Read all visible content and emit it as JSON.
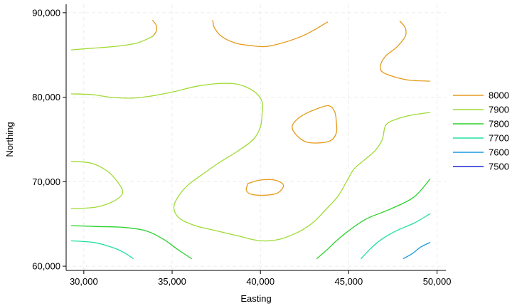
{
  "chart_data": {
    "type": "contour",
    "xlabel": "Easting",
    "ylabel": "Northing",
    "xlim": [
      29000,
      50500
    ],
    "ylim": [
      59500,
      91000
    ],
    "x_ticks": [
      30000,
      35000,
      40000,
      45000,
      50000
    ],
    "x_tick_labels": [
      "30,000",
      "35,000",
      "40,000",
      "45,000",
      "50,000"
    ],
    "y_ticks": [
      60000,
      70000,
      80000,
      90000
    ],
    "y_tick_labels": [
      "60,000",
      "70,000",
      "80,000",
      "90,000"
    ],
    "grid": true,
    "legend_position": "right",
    "series": [
      {
        "name": "8000",
        "color": "#e69a1b",
        "lines": [
          [
            [
              33900,
              89100
            ],
            [
              34100,
              88500
            ],
            [
              34100,
              87800
            ],
            [
              33900,
              87200
            ]
          ],
          [
            [
              37300,
              89100
            ],
            [
              37400,
              88200
            ],
            [
              37800,
              87200
            ],
            [
              38600,
              86400
            ],
            [
              39500,
              86100
            ],
            [
              40300,
              86000
            ],
            [
              41200,
              86400
            ],
            [
              42200,
              87100
            ],
            [
              43000,
              87900
            ],
            [
              43800,
              88900
            ]
          ],
          [
            [
              47900,
              89000
            ],
            [
              48200,
              88200
            ],
            [
              48200,
              87200
            ],
            [
              47700,
              85900
            ],
            [
              47100,
              84900
            ],
            [
              46800,
              83800
            ],
            [
              46900,
              83000
            ],
            [
              47600,
              82400
            ],
            [
              48500,
              82000
            ],
            [
              49600,
              81900
            ]
          ],
          [
            [
              42800,
              78300
            ],
            [
              43800,
              79000
            ],
            [
              44200,
              78300
            ],
            [
              44300,
              77000
            ],
            [
              44300,
              75800
            ],
            [
              44000,
              74900
            ],
            [
              43400,
              74600
            ],
            [
              42600,
              74700
            ],
            [
              42000,
              75600
            ],
            [
              41800,
              76600
            ],
            [
              42200,
              77600
            ],
            [
              42800,
              78300
            ]
          ],
          [
            [
              39300,
              69800
            ],
            [
              40000,
              70200
            ],
            [
              40800,
              70200
            ],
            [
              41300,
              69600
            ],
            [
              41000,
              68700
            ],
            [
              40300,
              68400
            ],
            [
              39500,
              68500
            ],
            [
              39200,
              69000
            ],
            [
              39300,
              69800
            ]
          ]
        ]
      },
      {
        "name": "7900",
        "color": "#9fdb34",
        "lines": [
          [
            [
              29300,
              85600
            ],
            [
              30500,
              85800
            ],
            [
              31700,
              86000
            ],
            [
              33000,
              86400
            ],
            [
              33900,
              87200
            ]
          ],
          [
            [
              29300,
              80400
            ],
            [
              30500,
              80300
            ],
            [
              31500,
              80000
            ],
            [
              32800,
              79900
            ],
            [
              34000,
              80200
            ],
            [
              35200,
              80700
            ],
            [
              36400,
              81300
            ],
            [
              37500,
              81600
            ],
            [
              38500,
              81600
            ],
            [
              39200,
              81200
            ],
            [
              39800,
              80400
            ],
            [
              40100,
              79400
            ],
            [
              40100,
              78200
            ],
            [
              40000,
              76500
            ],
            [
              39600,
              75000
            ],
            [
              38700,
              73600
            ],
            [
              37700,
              72300
            ],
            [
              36800,
              71000
            ],
            [
              35900,
              69600
            ],
            [
              35400,
              68400
            ],
            [
              35100,
              67000
            ],
            [
              35400,
              65700
            ],
            [
              36300,
              64800
            ],
            [
              37500,
              64200
            ],
            [
              38700,
              63600
            ],
            [
              40000,
              63000
            ],
            [
              41100,
              63200
            ],
            [
              42200,
              64100
            ],
            [
              43000,
              65200
            ],
            [
              43700,
              66700
            ],
            [
              44400,
              68300
            ],
            [
              44900,
              70100
            ],
            [
              45300,
              71500
            ],
            [
              45900,
              72600
            ],
            [
              46500,
              73700
            ],
            [
              46900,
              75000
            ],
            [
              47100,
              76700
            ],
            [
              47700,
              77400
            ],
            [
              48600,
              77900
            ],
            [
              49600,
              78200
            ]
          ],
          [
            [
              29300,
              72400
            ],
            [
              30400,
              72200
            ],
            [
              31300,
              71300
            ],
            [
              31900,
              70000
            ],
            [
              32200,
              68700
            ],
            [
              31700,
              67700
            ],
            [
              30700,
              67000
            ],
            [
              29300,
              66800
            ]
          ]
        ]
      },
      {
        "name": "7800",
        "color": "#2bd12b",
        "lines": [
          [
            [
              29300,
              64800
            ],
            [
              30800,
              64700
            ],
            [
              32200,
              64600
            ],
            [
              33500,
              64200
            ],
            [
              34500,
              63200
            ],
            [
              35300,
              62000
            ],
            [
              36100,
              60900
            ]
          ],
          [
            [
              43200,
              60900
            ],
            [
              43800,
              62000
            ],
            [
              44300,
              63000
            ],
            [
              45000,
              64200
            ],
            [
              46000,
              65600
            ],
            [
              47400,
              66800
            ],
            [
              48700,
              68200
            ],
            [
              49600,
              70300
            ]
          ]
        ]
      },
      {
        "name": "7700",
        "color": "#1fe0a0",
        "lines": [
          [
            [
              29300,
              63000
            ],
            [
              30600,
              62800
            ],
            [
              31500,
              62300
            ],
            [
              32200,
              61700
            ],
            [
              32800,
              60900
            ]
          ],
          [
            [
              45700,
              60900
            ],
            [
              46200,
              62000
            ],
            [
              46800,
              63100
            ],
            [
              47700,
              64200
            ],
            [
              48700,
              65100
            ],
            [
              49600,
              66200
            ]
          ]
        ]
      },
      {
        "name": "7600",
        "color": "#1a9ae0",
        "lines": [
          [
            [
              48100,
              60900
            ],
            [
              48600,
              61500
            ],
            [
              49100,
              62300
            ],
            [
              49600,
              62800
            ]
          ]
        ]
      },
      {
        "name": "7500",
        "color": "#1e2ad2",
        "lines": []
      }
    ]
  }
}
